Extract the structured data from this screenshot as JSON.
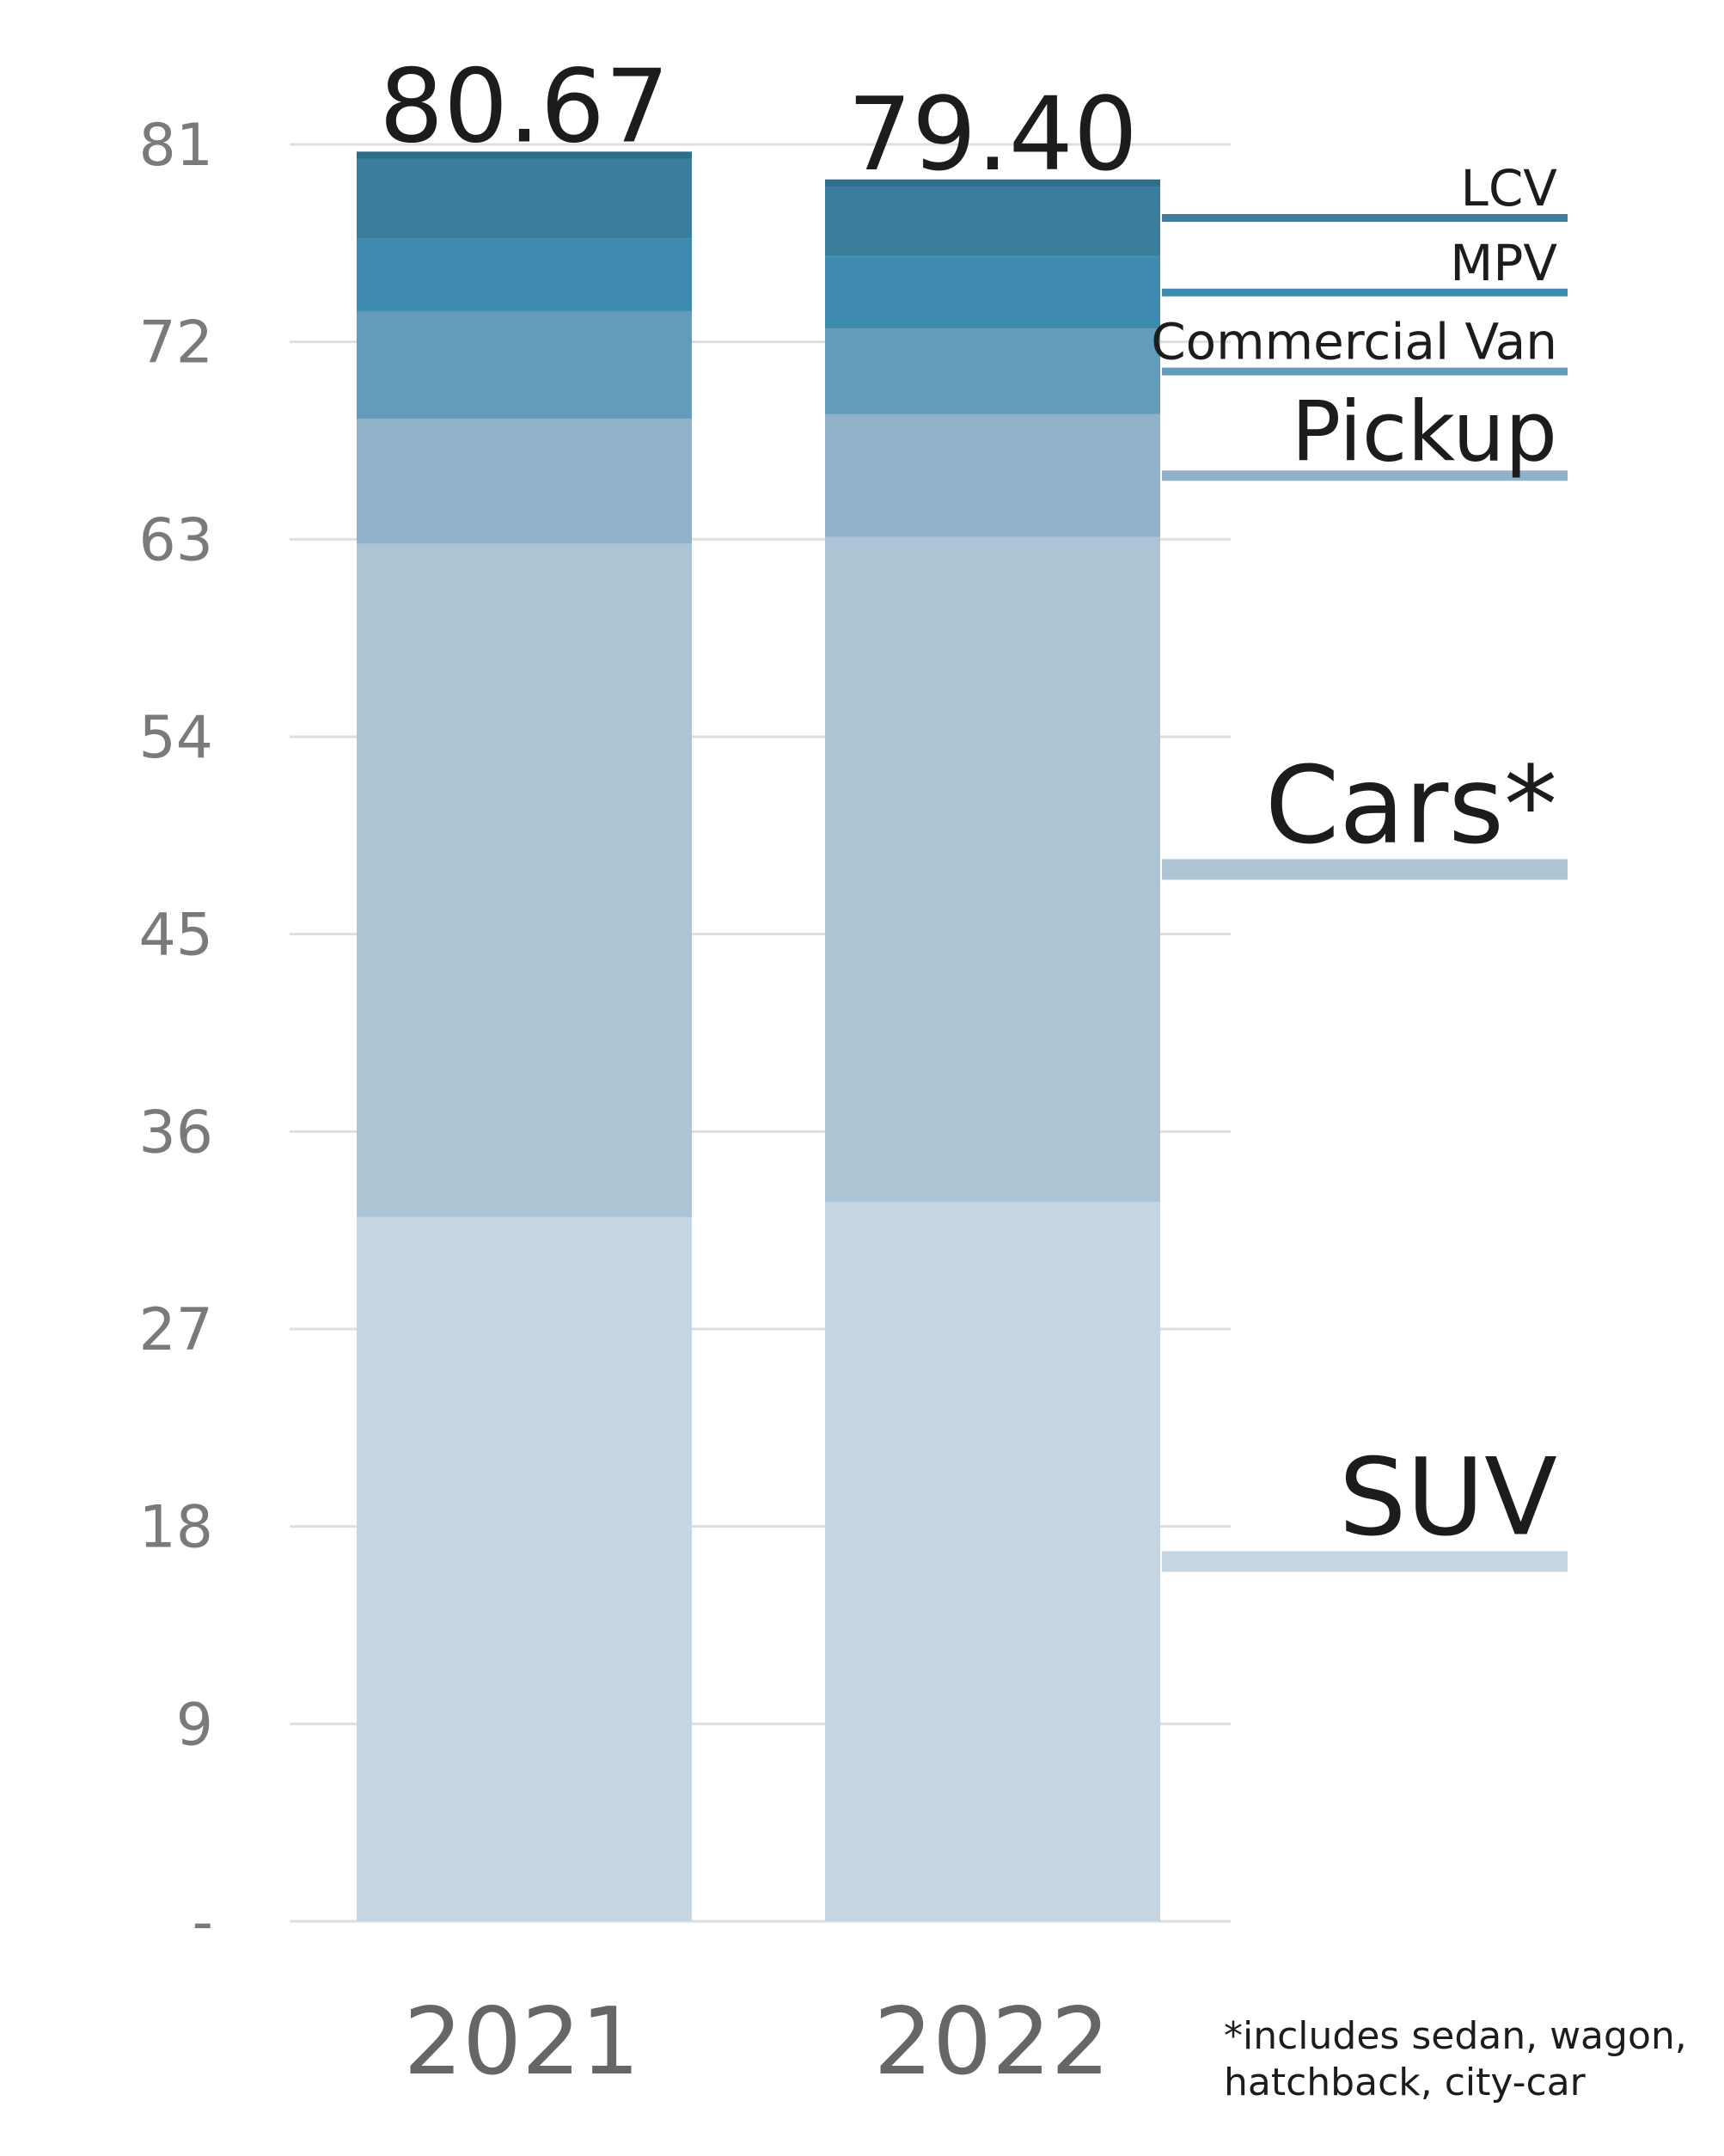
{
  "chart_data": {
    "type": "bar",
    "stacked": true,
    "categories": [
      "2021",
      "2022"
    ],
    "ylim": [
      0,
      81
    ],
    "yticks": [
      0,
      9,
      18,
      27,
      36,
      45,
      54,
      63,
      72,
      81
    ],
    "ytick_labels": [
      "-",
      "9",
      "18",
      "27",
      "36",
      "45",
      "54",
      "63",
      "72",
      "81"
    ],
    "grid": true,
    "totals_labels": [
      "80.67",
      "79.40"
    ],
    "series": [
      {
        "name": "SUV",
        "values": [
          32.1,
          32.8
        ],
        "color": "#c5d6e2"
      },
      {
        "name": "Cars*",
        "values": [
          30.7,
          30.3
        ],
        "color": "#adc4d4"
      },
      {
        "name": "Pickup",
        "values": [
          5.7,
          5.6
        ],
        "color": "#8fb2c8"
      },
      {
        "name": "Commercial Van",
        "values": [
          4.9,
          3.9
        ],
        "color": "#629cba"
      },
      {
        "name": "MPV",
        "values": [
          3.3,
          3.3
        ],
        "color": "#3f8baf"
      },
      {
        "name": "LCV",
        "values": [
          3.97,
          3.5
        ],
        "color": "#3a7d9c"
      }
    ],
    "footnote": "*includes sedan, wagon, hatchback, city-car"
  }
}
